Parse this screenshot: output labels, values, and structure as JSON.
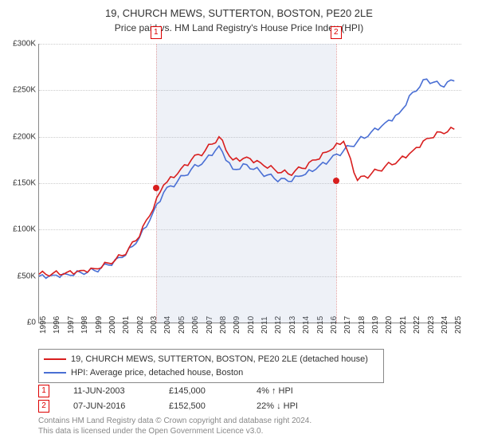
{
  "title_line1": "19, CHURCH MEWS, SUTTERTON, BOSTON, PE20 2LE",
  "title_line2": "Price paid vs. HM Land Registry's House Price Index (HPI)",
  "chart": {
    "type": "line",
    "background_color": "#ffffff",
    "grid_color": "#cccccc",
    "axis_color": "#888888",
    "x_years": [
      1995,
      1996,
      1997,
      1998,
      1999,
      2000,
      2001,
      2002,
      2003,
      2004,
      2005,
      2006,
      2007,
      2008,
      2009,
      2010,
      2011,
      2012,
      2013,
      2014,
      2015,
      2016,
      2017,
      2018,
      2019,
      2020,
      2021,
      2022,
      2023,
      2024,
      2025
    ],
    "xlim": [
      1995,
      2025.5
    ],
    "ylim": [
      0,
      300000
    ],
    "ytick_step": 50000,
    "yticks": [
      "£0",
      "£50K",
      "£100K",
      "£150K",
      "£200K",
      "£250K",
      "£300K"
    ],
    "label_fontsize": 10,
    "line_width": 1.6,
    "series": [
      {
        "name": "property",
        "color": "#d81e1e",
        "label": "19, CHURCH MEWS, SUTTERTON, BOSTON, PE20 2LE (detached house)",
        "values": [
          52,
          53,
          54,
          56,
          58,
          64,
          72,
          88,
          115,
          148,
          160,
          175,
          185,
          200,
          175,
          178,
          172,
          165,
          160,
          166,
          175,
          185,
          195,
          153,
          160,
          168,
          175,
          185,
          198,
          205,
          208
        ]
      },
      {
        "name": "hpi",
        "color": "#4a6fd4",
        "label": "HPI: Average price, detached house, Boston",
        "values": [
          50,
          51,
          52,
          54,
          56,
          62,
          70,
          85,
          110,
          140,
          152,
          165,
          175,
          190,
          165,
          170,
          162,
          155,
          152,
          158,
          165,
          175,
          185,
          195,
          205,
          215,
          225,
          248,
          262,
          255,
          260
        ]
      }
    ],
    "shade_region": {
      "from_year": 2003.45,
      "to_year": 2016.45,
      "color": "rgba(160,180,210,0.18)"
    },
    "vlines": [
      {
        "year": 2003.45,
        "color": "#e2a0a0"
      },
      {
        "year": 2016.45,
        "color": "#e2a0a0"
      }
    ],
    "sale_markers": [
      {
        "num": "1",
        "year": 2003.45,
        "value": 145,
        "dot_color": "#d81e1e"
      },
      {
        "num": "2",
        "year": 2016.45,
        "value": 152.5,
        "dot_color": "#d81e1e"
      }
    ]
  },
  "legend": {
    "rows": [
      {
        "color": "#d81e1e",
        "text": "19, CHURCH MEWS, SUTTERTON, BOSTON, PE20 2LE (detached house)"
      },
      {
        "color": "#4a6fd4",
        "text": "HPI: Average price, detached house, Boston"
      }
    ]
  },
  "sales": [
    {
      "num": "1",
      "date": "11-JUN-2003",
      "price": "£145,000",
      "pct": "4%",
      "arrow": "↑",
      "suffix": "HPI"
    },
    {
      "num": "2",
      "date": "07-JUN-2016",
      "price": "£152,500",
      "pct": "22%",
      "arrow": "↓",
      "suffix": "HPI"
    }
  ],
  "footer_line1": "Contains HM Land Registry data © Crown copyright and database right 2024.",
  "footer_line2": "This data is licensed under the Open Government Licence v3.0."
}
